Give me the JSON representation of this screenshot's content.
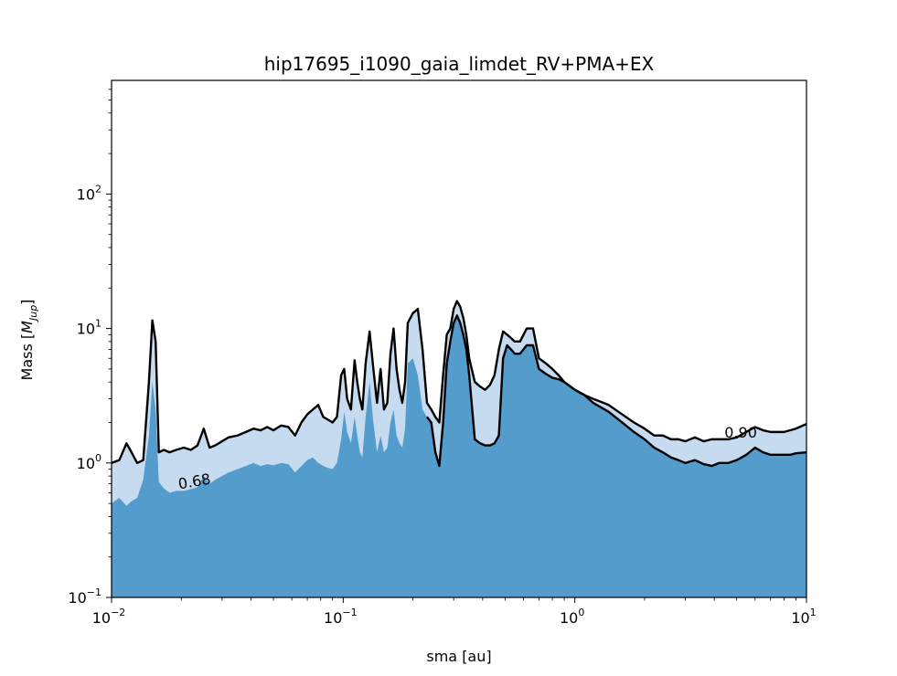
{
  "chart_data": {
    "type": "area",
    "title": "hip17695_i1090_gaia_limdet_RV+PMA+EX",
    "xlabel": "sma [au]",
    "ylabel_prefix": "Mass [",
    "ylabel_symbol": "M",
    "ylabel_subscript": "Jup",
    "ylabel_suffix": "]",
    "xscale": "log",
    "yscale": "log",
    "xlim": [
      0.01,
      10
    ],
    "ylim": [
      0.1,
      700
    ],
    "x_ticks": [
      {
        "base": "10",
        "exp": "−2",
        "value": 0.01
      },
      {
        "base": "10",
        "exp": "−1",
        "value": 0.1
      },
      {
        "base": "10",
        "exp": "0",
        "value": 1
      },
      {
        "base": "10",
        "exp": "1",
        "value": 10
      }
    ],
    "y_ticks": [
      {
        "base": "10",
        "exp": "−1",
        "value": 0.1
      },
      {
        "base": "10",
        "exp": "0",
        "value": 1
      },
      {
        "base": "10",
        "exp": "1",
        "value": 10
      },
      {
        "base": "10",
        "exp": "2",
        "value": 100
      }
    ],
    "colors": {
      "light_fill": "#c6dbef",
      "dark_fill": "#539ccc",
      "contour": "#000000"
    },
    "contour_labels": [
      {
        "text": "0.68",
        "x": 0.023,
        "y": 0.67,
        "rotation": -10
      },
      {
        "text": "0.90",
        "x": 5.2,
        "y": 1.55,
        "rotation": 0
      }
    ],
    "series": [
      {
        "name": "0.90",
        "fill": "light",
        "x": [
          0.01,
          0.0108,
          0.0116,
          0.0122,
          0.0129,
          0.0137,
          0.0145,
          0.015,
          0.0155,
          0.016,
          0.0168,
          0.0178,
          0.019,
          0.0205,
          0.022,
          0.0235,
          0.025,
          0.0265,
          0.028,
          0.03,
          0.032,
          0.035,
          0.038,
          0.041,
          0.044,
          0.047,
          0.05,
          0.054,
          0.058,
          0.062,
          0.066,
          0.07,
          0.074,
          0.078,
          0.082,
          0.086,
          0.09,
          0.094,
          0.098,
          0.101,
          0.104,
          0.108,
          0.112,
          0.115,
          0.118,
          0.121,
          0.125,
          0.13,
          0.135,
          0.14,
          0.145,
          0.15,
          0.155,
          0.16,
          0.165,
          0.17,
          0.175,
          0.18,
          0.185,
          0.19,
          0.2,
          0.21,
          0.22,
          0.23,
          0.24,
          0.25,
          0.26,
          0.27,
          0.28,
          0.29,
          0.3,
          0.31,
          0.32,
          0.33,
          0.34,
          0.35,
          0.37,
          0.39,
          0.41,
          0.43,
          0.45,
          0.47,
          0.49,
          0.51,
          0.53,
          0.55,
          0.58,
          0.62,
          0.66,
          0.7,
          0.75,
          0.8,
          0.85,
          0.9,
          1.0,
          1.1,
          1.2,
          1.4,
          1.6,
          1.8,
          2.0,
          2.2,
          2.4,
          2.6,
          2.8,
          3.0,
          3.3,
          3.6,
          3.9,
          4.2,
          4.6,
          5.0,
          5.5,
          6.0,
          6.5,
          7.0,
          7.5,
          8.0,
          8.5,
          9.0,
          10.0
        ],
        "y": [
          1.0,
          1.05,
          1.4,
          1.2,
          1.0,
          1.05,
          4.0,
          11.5,
          8.0,
          1.2,
          1.25,
          1.2,
          1.25,
          1.3,
          1.25,
          1.35,
          1.8,
          1.3,
          1.35,
          1.45,
          1.55,
          1.6,
          1.7,
          1.8,
          1.75,
          1.85,
          1.75,
          1.9,
          1.85,
          1.6,
          2.0,
          2.3,
          2.5,
          2.7,
          2.2,
          2.1,
          2.0,
          2.2,
          4.5,
          5.0,
          3.0,
          2.5,
          5.8,
          4.0,
          3.0,
          2.5,
          5.5,
          9.5,
          5.0,
          2.8,
          5.0,
          2.5,
          2.8,
          6.5,
          10.0,
          5.0,
          3.5,
          2.8,
          4.0,
          11.0,
          13.0,
          14.0,
          7.0,
          2.8,
          2.5,
          2.2,
          2.0,
          4.5,
          9.0,
          10.0,
          14.0,
          16.0,
          14.5,
          12.0,
          9.0,
          6.0,
          4.0,
          3.7,
          3.5,
          3.8,
          4.5,
          7.0,
          9.5,
          9.0,
          8.5,
          8.0,
          8.0,
          10.0,
          10.0,
          6.0,
          5.5,
          5.0,
          4.5,
          4.0,
          3.5,
          3.2,
          3.0,
          2.7,
          2.3,
          2.0,
          1.8,
          1.6,
          1.6,
          1.5,
          1.5,
          1.45,
          1.55,
          1.45,
          1.5,
          1.5,
          1.5,
          1.55,
          1.7,
          1.85,
          1.75,
          1.7,
          1.7,
          1.7,
          1.75,
          1.8,
          1.95
        ]
      },
      {
        "name": "0.68",
        "fill": "dark",
        "x": [
          0.01,
          0.0108,
          0.0116,
          0.0122,
          0.0129,
          0.0137,
          0.0145,
          0.015,
          0.0155,
          0.016,
          0.0168,
          0.0178,
          0.019,
          0.0205,
          0.022,
          0.0235,
          0.025,
          0.0265,
          0.028,
          0.03,
          0.032,
          0.035,
          0.038,
          0.041,
          0.044,
          0.047,
          0.05,
          0.054,
          0.058,
          0.062,
          0.066,
          0.07,
          0.074,
          0.078,
          0.082,
          0.086,
          0.09,
          0.094,
          0.098,
          0.101,
          0.104,
          0.108,
          0.112,
          0.115,
          0.118,
          0.121,
          0.125,
          0.13,
          0.135,
          0.14,
          0.145,
          0.15,
          0.155,
          0.16,
          0.165,
          0.17,
          0.175,
          0.18,
          0.185,
          0.19,
          0.2,
          0.21,
          0.22,
          0.23,
          0.24,
          0.25,
          0.26,
          0.27,
          0.28,
          0.29,
          0.3,
          0.31,
          0.32,
          0.33,
          0.34,
          0.35,
          0.37,
          0.39,
          0.41,
          0.43,
          0.45,
          0.47,
          0.49,
          0.51,
          0.53,
          0.55,
          0.58,
          0.62,
          0.66,
          0.7,
          0.75,
          0.8,
          0.85,
          0.9,
          1.0,
          1.1,
          1.2,
          1.4,
          1.6,
          1.8,
          2.0,
          2.2,
          2.4,
          2.6,
          2.8,
          3.0,
          3.3,
          3.6,
          3.9,
          4.2,
          4.6,
          5.0,
          5.5,
          6.0,
          6.5,
          7.0,
          7.5,
          8.0,
          8.5,
          9.0,
          10.0
        ],
        "y": [
          0.5,
          0.55,
          0.48,
          0.52,
          0.55,
          0.75,
          1.6,
          4.0,
          2.5,
          0.72,
          0.65,
          0.6,
          0.62,
          0.62,
          0.64,
          0.66,
          0.8,
          0.7,
          0.75,
          0.8,
          0.85,
          0.9,
          0.95,
          1.0,
          0.95,
          0.98,
          0.96,
          1.0,
          0.98,
          0.85,
          0.95,
          1.05,
          1.1,
          1.0,
          0.95,
          0.92,
          0.9,
          1.0,
          1.5,
          2.4,
          1.7,
          1.4,
          2.2,
          1.6,
          1.2,
          1.1,
          2.2,
          4.0,
          2.0,
          1.2,
          1.6,
          1.2,
          1.3,
          2.0,
          2.5,
          1.6,
          1.4,
          1.3,
          1.8,
          5.5,
          6.0,
          4.5,
          2.5,
          2.2,
          2.0,
          1.2,
          0.95,
          2.0,
          5.5,
          8.0,
          11.0,
          12.5,
          11.0,
          9.0,
          7.0,
          4.5,
          1.5,
          1.4,
          1.35,
          1.35,
          1.4,
          1.6,
          6.0,
          7.5,
          7.0,
          6.5,
          6.5,
          7.5,
          7.5,
          5.0,
          4.6,
          4.3,
          4.2,
          4.0,
          3.5,
          3.2,
          2.8,
          2.4,
          2.0,
          1.7,
          1.5,
          1.3,
          1.2,
          1.1,
          1.05,
          1.0,
          1.05,
          0.98,
          0.95,
          1.0,
          1.0,
          1.05,
          1.15,
          1.3,
          1.2,
          1.15,
          1.15,
          1.15,
          1.15,
          1.18,
          1.2
        ]
      }
    ]
  }
}
